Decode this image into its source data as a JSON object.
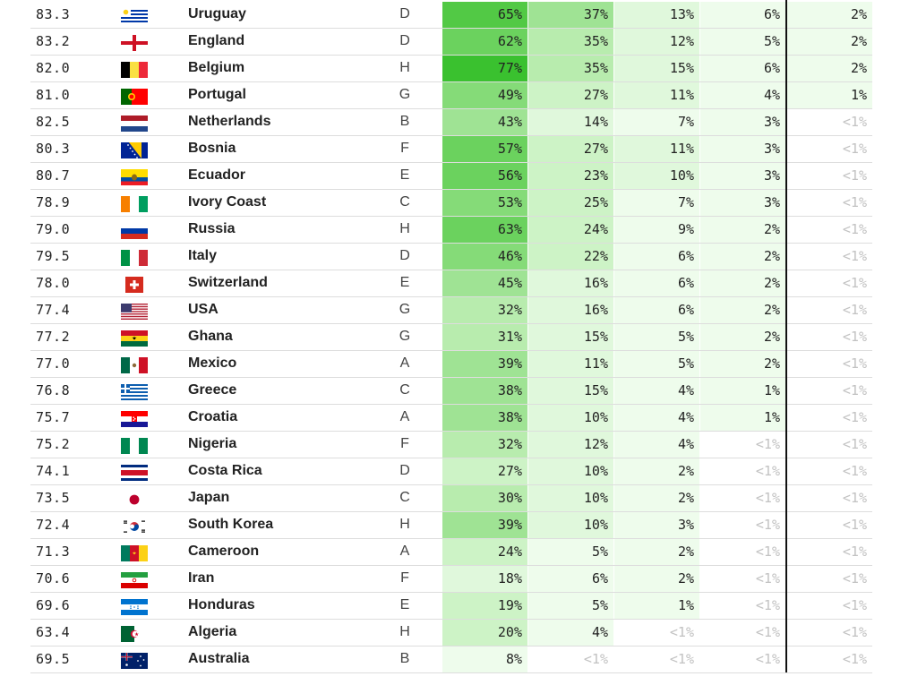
{
  "colors": {
    "text": "#222222",
    "muted": "#c2c2c2",
    "border": "#dddddd",
    "scale": [
      "#ffffff",
      "#eefcec",
      "#e0f8dc",
      "#cdf3c6",
      "#b8ecae",
      "#9fe394",
      "#85db78",
      "#6bd25e",
      "#52c945",
      "#3ac12f"
    ]
  },
  "rows": [
    {
      "spi": "83.3",
      "flag": "uruguay-flag-icon",
      "name": "Uruguay",
      "group": "D",
      "p": [
        "65%",
        "37%",
        "13%",
        "6%",
        "2%"
      ],
      "v": [
        65,
        37,
        13,
        6,
        2
      ]
    },
    {
      "spi": "83.2",
      "flag": "england-flag-icon",
      "name": "England",
      "group": "D",
      "p": [
        "62%",
        "35%",
        "12%",
        "5%",
        "2%"
      ],
      "v": [
        62,
        35,
        12,
        5,
        2
      ]
    },
    {
      "spi": "82.0",
      "flag": "belgium-flag-icon",
      "name": "Belgium",
      "group": "H",
      "p": [
        "77%",
        "35%",
        "15%",
        "6%",
        "2%"
      ],
      "v": [
        77,
        35,
        15,
        6,
        2
      ]
    },
    {
      "spi": "81.0",
      "flag": "portugal-flag-icon",
      "name": "Portugal",
      "group": "G",
      "p": [
        "49%",
        "27%",
        "11%",
        "4%",
        "1%"
      ],
      "v": [
        49,
        27,
        11,
        4,
        1
      ]
    },
    {
      "spi": "82.5",
      "flag": "netherlands-flag-icon",
      "name": "Netherlands",
      "group": "B",
      "p": [
        "43%",
        "14%",
        "7%",
        "3%",
        "<1%"
      ],
      "v": [
        43,
        14,
        7,
        3,
        0
      ]
    },
    {
      "spi": "80.3",
      "flag": "bosnia-flag-icon",
      "name": "Bosnia",
      "group": "F",
      "p": [
        "57%",
        "27%",
        "11%",
        "3%",
        "<1%"
      ],
      "v": [
        57,
        27,
        11,
        3,
        0
      ]
    },
    {
      "spi": "80.7",
      "flag": "ecuador-flag-icon",
      "name": "Ecuador",
      "group": "E",
      "p": [
        "56%",
        "23%",
        "10%",
        "3%",
        "<1%"
      ],
      "v": [
        56,
        23,
        10,
        3,
        0
      ]
    },
    {
      "spi": "78.9",
      "flag": "ivory-coast-flag-icon",
      "name": "Ivory Coast",
      "group": "C",
      "p": [
        "53%",
        "25%",
        "7%",
        "3%",
        "<1%"
      ],
      "v": [
        53,
        25,
        7,
        3,
        0
      ]
    },
    {
      "spi": "79.0",
      "flag": "russia-flag-icon",
      "name": "Russia",
      "group": "H",
      "p": [
        "63%",
        "24%",
        "9%",
        "2%",
        "<1%"
      ],
      "v": [
        63,
        24,
        9,
        2,
        0
      ]
    },
    {
      "spi": "79.5",
      "flag": "italy-flag-icon",
      "name": "Italy",
      "group": "D",
      "p": [
        "46%",
        "22%",
        "6%",
        "2%",
        "<1%"
      ],
      "v": [
        46,
        22,
        6,
        2,
        0
      ]
    },
    {
      "spi": "78.0",
      "flag": "switzerland-flag-icon",
      "name": "Switzerland",
      "group": "E",
      "p": [
        "45%",
        "16%",
        "6%",
        "2%",
        "<1%"
      ],
      "v": [
        45,
        16,
        6,
        2,
        0
      ]
    },
    {
      "spi": "77.4",
      "flag": "usa-flag-icon",
      "name": "USA",
      "group": "G",
      "p": [
        "32%",
        "16%",
        "6%",
        "2%",
        "<1%"
      ],
      "v": [
        32,
        16,
        6,
        2,
        0
      ]
    },
    {
      "spi": "77.2",
      "flag": "ghana-flag-icon",
      "name": "Ghana",
      "group": "G",
      "p": [
        "31%",
        "15%",
        "5%",
        "2%",
        "<1%"
      ],
      "v": [
        31,
        15,
        5,
        2,
        0
      ]
    },
    {
      "spi": "77.0",
      "flag": "mexico-flag-icon",
      "name": "Mexico",
      "group": "A",
      "p": [
        "39%",
        "11%",
        "5%",
        "2%",
        "<1%"
      ],
      "v": [
        39,
        11,
        5,
        2,
        0
      ]
    },
    {
      "spi": "76.8",
      "flag": "greece-flag-icon",
      "name": "Greece",
      "group": "C",
      "p": [
        "38%",
        "15%",
        "4%",
        "1%",
        "<1%"
      ],
      "v": [
        38,
        15,
        4,
        1,
        0
      ]
    },
    {
      "spi": "75.7",
      "flag": "croatia-flag-icon",
      "name": "Croatia",
      "group": "A",
      "p": [
        "38%",
        "10%",
        "4%",
        "1%",
        "<1%"
      ],
      "v": [
        38,
        10,
        4,
        1,
        0
      ]
    },
    {
      "spi": "75.2",
      "flag": "nigeria-flag-icon",
      "name": "Nigeria",
      "group": "F",
      "p": [
        "32%",
        "12%",
        "4%",
        "<1%",
        "<1%"
      ],
      "v": [
        32,
        12,
        4,
        0,
        0
      ]
    },
    {
      "spi": "74.1",
      "flag": "costa-rica-flag-icon",
      "name": "Costa Rica",
      "group": "D",
      "p": [
        "27%",
        "10%",
        "2%",
        "<1%",
        "<1%"
      ],
      "v": [
        27,
        10,
        2,
        0,
        0
      ]
    },
    {
      "spi": "73.5",
      "flag": "japan-flag-icon",
      "name": "Japan",
      "group": "C",
      "p": [
        "30%",
        "10%",
        "2%",
        "<1%",
        "<1%"
      ],
      "v": [
        30,
        10,
        2,
        0,
        0
      ]
    },
    {
      "spi": "72.4",
      "flag": "south-korea-flag-icon",
      "name": "South Korea",
      "group": "H",
      "p": [
        "39%",
        "10%",
        "3%",
        "<1%",
        "<1%"
      ],
      "v": [
        39,
        10,
        3,
        0,
        0
      ]
    },
    {
      "spi": "71.3",
      "flag": "cameroon-flag-icon",
      "name": "Cameroon",
      "group": "A",
      "p": [
        "24%",
        "5%",
        "2%",
        "<1%",
        "<1%"
      ],
      "v": [
        24,
        5,
        2,
        0,
        0
      ]
    },
    {
      "spi": "70.6",
      "flag": "iran-flag-icon",
      "name": "Iran",
      "group": "F",
      "p": [
        "18%",
        "6%",
        "2%",
        "<1%",
        "<1%"
      ],
      "v": [
        18,
        6,
        2,
        0,
        0
      ]
    },
    {
      "spi": "69.6",
      "flag": "honduras-flag-icon",
      "name": "Honduras",
      "group": "E",
      "p": [
        "19%",
        "5%",
        "1%",
        "<1%",
        "<1%"
      ],
      "v": [
        19,
        5,
        1,
        0,
        0
      ]
    },
    {
      "spi": "63.4",
      "flag": "algeria-flag-icon",
      "name": "Algeria",
      "group": "H",
      "p": [
        "20%",
        "4%",
        "<1%",
        "<1%",
        "<1%"
      ],
      "v": [
        20,
        4,
        0,
        0,
        0
      ]
    },
    {
      "spi": "69.5",
      "flag": "australia-flag-icon",
      "name": "Australia",
      "group": "B",
      "p": [
        "8%",
        "<1%",
        "<1%",
        "<1%",
        "<1%"
      ],
      "v": [
        8,
        0,
        0,
        0,
        0
      ]
    }
  ]
}
